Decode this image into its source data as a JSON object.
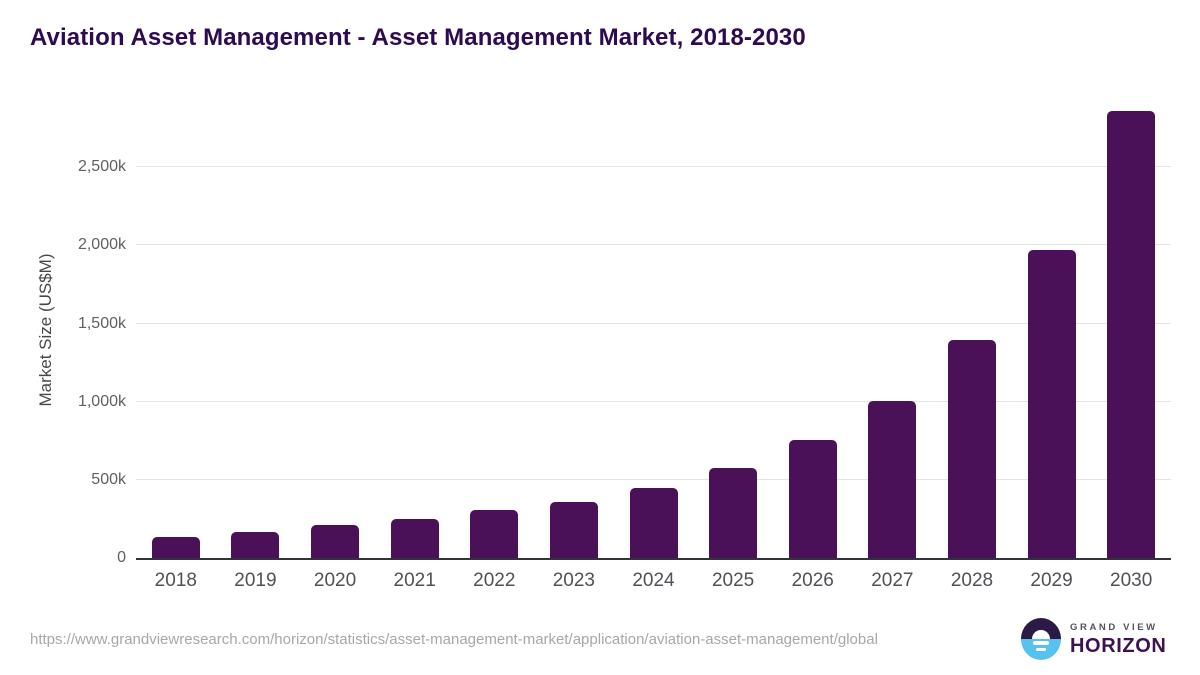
{
  "header": {
    "title": "Aviation Asset Management - Asset Management Market, 2018-2030"
  },
  "chart_data": {
    "type": "bar",
    "title": "Aviation Asset Management - Asset Management Market, 2018-2030",
    "xlabel": "",
    "ylabel": "Market Size (US$M)",
    "unit": "US$M",
    "categories": [
      "2018",
      "2019",
      "2020",
      "2021",
      "2022",
      "2023",
      "2024",
      "2025",
      "2026",
      "2027",
      "2028",
      "2029",
      "2030"
    ],
    "values": [
      135000,
      165000,
      210000,
      250000,
      305000,
      360000,
      450000,
      575000,
      755000,
      1005000,
      1395000,
      1970000,
      2860000
    ],
    "ylim": [
      0,
      2930000
    ],
    "y_ticks": [
      {
        "value": 0,
        "label": "0"
      },
      {
        "value": 500000,
        "label": "500k"
      },
      {
        "value": 1000000,
        "label": "1,000k"
      },
      {
        "value": 1500000,
        "label": "1,500k"
      },
      {
        "value": 2000000,
        "label": "2,000k"
      },
      {
        "value": 2500000,
        "label": "2,500k"
      }
    ],
    "grid": "horizontal",
    "legend": "none"
  },
  "footer": {
    "source_url": "https://www.grandviewresearch.com/horizon/statistics/asset-management-market/application/aviation-asset-management/global",
    "brand": {
      "line1": "GRAND VIEW",
      "line2": "HORIZON"
    }
  },
  "colors": {
    "page_bg": "#ffffff",
    "bar": "#4a1158",
    "title": "#2e0a50",
    "axis_line": "#34333b",
    "gridline": "#e4e4e7",
    "tick_text": "#606064",
    "xtick_text": "#505156",
    "axis_label_text": "#47474b",
    "url_text": "#a7a7a7",
    "logo_top": "#2a1a45",
    "logo_bottom": "#55c3ee",
    "logo_line1_text": "#55505c",
    "logo_line2_text": "#3c1253"
  }
}
